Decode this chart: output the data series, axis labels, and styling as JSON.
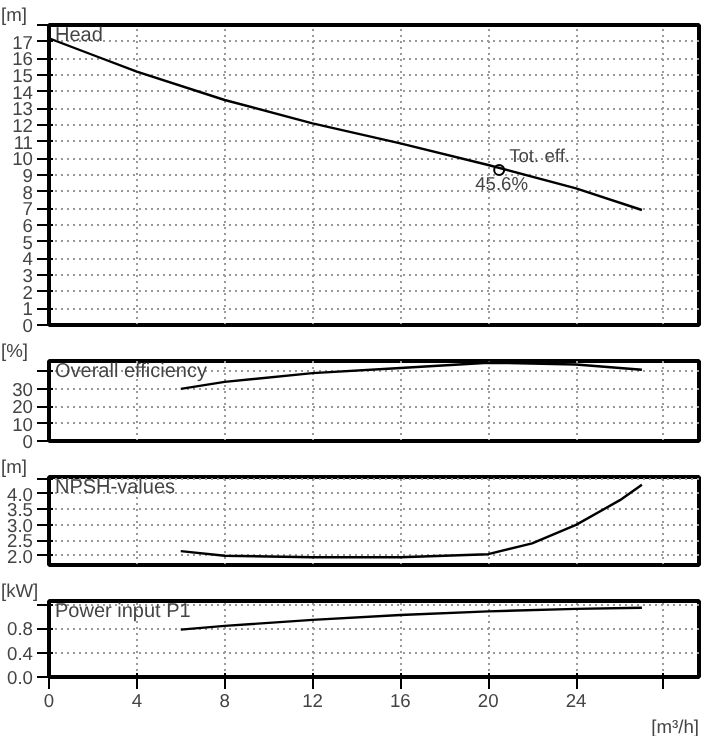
{
  "chart_data": [
    {
      "type": "line",
      "title": "Head",
      "ylabel": "[m]",
      "x": [
        0,
        2,
        4,
        8,
        12,
        16,
        20,
        24,
        27
      ],
      "values": [
        17.2,
        16.2,
        15.2,
        13.5,
        12.1,
        10.9,
        9.6,
        8.2,
        6.9
      ],
      "color": "#000000",
      "xlim": [
        0,
        29.6
      ],
      "xticks": [
        0,
        4,
        8,
        12,
        16,
        20,
        24,
        28
      ],
      "ylim": [
        0,
        18
      ],
      "yticks": [
        0,
        1,
        2,
        3,
        4,
        5,
        6,
        7,
        8,
        9,
        10,
        11,
        12,
        13,
        14,
        15,
        16,
        17,
        {
          "value": 18,
          "label": null
        }
      ],
      "grid": true,
      "tick_labels": "y",
      "annotations": [
        {
          "text": "Tot. eff.",
          "x": 20.5,
          "y": 9.3
        },
        {
          "text": "45.6%",
          "x": 20.5,
          "y": 9.3
        }
      ]
    },
    {
      "type": "line",
      "title": "Overall efficiency",
      "ylabel": "[%]",
      "x": [
        6,
        8,
        12,
        16,
        20,
        24,
        27
      ],
      "values": [
        30,
        34,
        39,
        42,
        45,
        44,
        41
      ],
      "color": "#000000",
      "xlim": [
        0,
        29.6
      ],
      "xticks": [
        0,
        4,
        8,
        12,
        16,
        20,
        24,
        28
      ],
      "ylim": [
        0,
        46
      ],
      "yticks": [
        0,
        10,
        20,
        30,
        {
          "value": 40,
          "label": null
        }
      ],
      "grid": true,
      "tick_labels": "y"
    },
    {
      "type": "line",
      "title": "NPSH-values",
      "ylabel": "[m]",
      "x": [
        6,
        8,
        12,
        16,
        20,
        22,
        24,
        26,
        27
      ],
      "values": [
        2.15,
        2.0,
        1.95,
        1.95,
        2.05,
        2.4,
        3.0,
        3.8,
        4.3
      ],
      "color": "#000000",
      "xlim": [
        0,
        29.6
      ],
      "xticks": [
        0,
        4,
        8,
        12,
        16,
        20,
        24,
        28
      ],
      "ylim": [
        1.7,
        4.55
      ],
      "yticks": [
        {
          "value": 2,
          "label": "2.0"
        },
        2.5,
        {
          "value": 3,
          "label": "3.0"
        },
        3.5,
        {
          "value": 4,
          "label": "4.0"
        },
        {
          "value": 4.5,
          "label": null
        }
      ],
      "grid": true,
      "tick_labels": "y"
    },
    {
      "type": "line",
      "title": "Power input P1",
      "ylabel": "[kW]",
      "xlabel": "[m³/h]",
      "x": [
        6,
        8,
        12,
        16,
        20,
        24,
        27
      ],
      "values": [
        0.78,
        0.84,
        0.94,
        1.02,
        1.08,
        1.12,
        1.14
      ],
      "color": "#000000",
      "xlim": [
        0,
        29.6
      ],
      "xticks": [
        0,
        4,
        8,
        12,
        16,
        20,
        24,
        {
          "value": 28,
          "label": null
        }
      ],
      "ylim": [
        0,
        1.25
      ],
      "yticks": [
        {
          "value": 0,
          "label": "0.0"
        },
        0.4,
        0.8,
        {
          "value": 1.2,
          "label": null
        }
      ],
      "grid": true
    }
  ]
}
